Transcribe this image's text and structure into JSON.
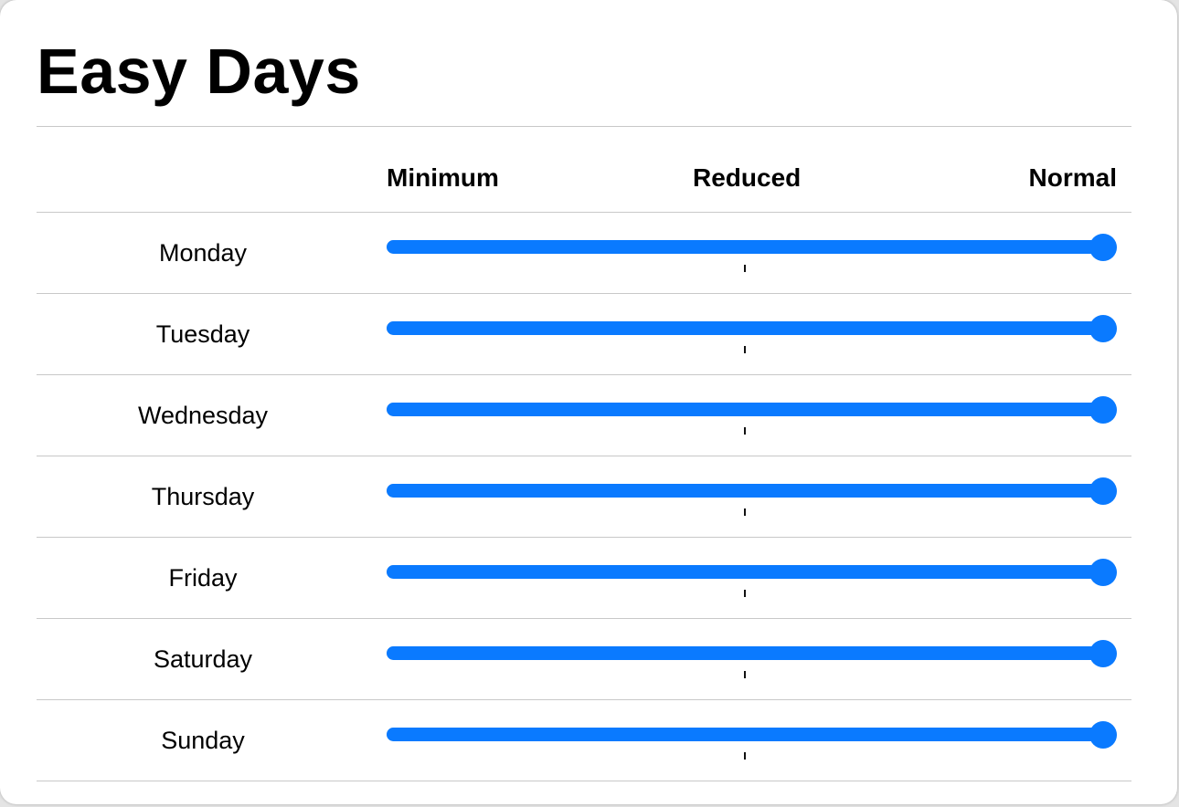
{
  "title": "Easy Days",
  "columns": [
    "Minimum",
    "Reduced",
    "Normal"
  ],
  "accent_color": "#0a7aff",
  "rows": [
    {
      "day": "Monday",
      "level": 1.0
    },
    {
      "day": "Tuesday",
      "level": 1.0
    },
    {
      "day": "Wednesday",
      "level": 1.0
    },
    {
      "day": "Thursday",
      "level": 1.0
    },
    {
      "day": "Friday",
      "level": 1.0
    },
    {
      "day": "Saturday",
      "level": 1.0
    },
    {
      "day": "Sunday",
      "level": 1.0
    }
  ]
}
